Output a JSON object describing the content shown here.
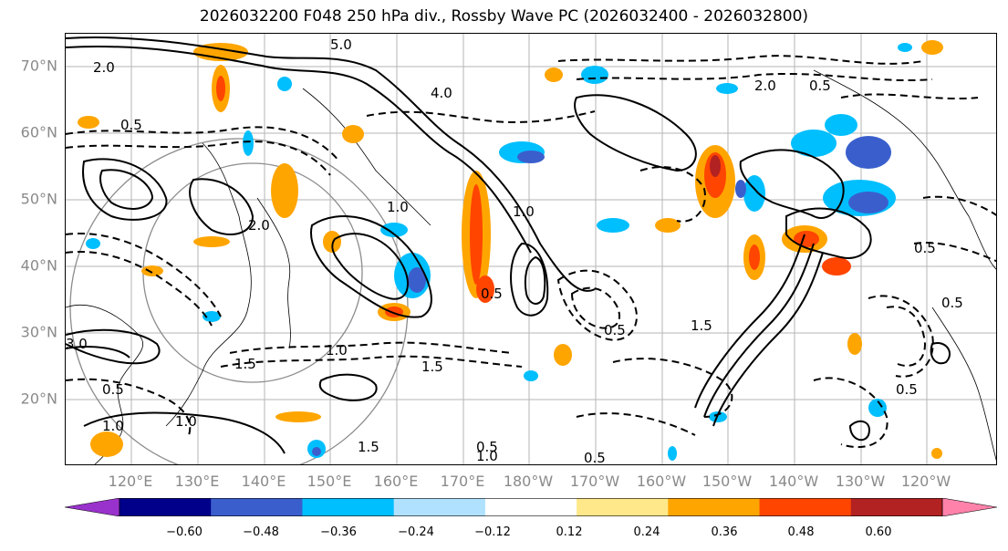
{
  "title": "2026032200 F048 250 hPa div., Rossby Wave PC (2026032400 - 2026032800)",
  "lat_labels": [
    "70°N",
    "60°N",
    "50°N",
    "40°N",
    "30°N",
    "20°N"
  ],
  "lon_labels": [
    "120°E",
    "130°E",
    "140°E",
    "150°E",
    "160°E",
    "170°E",
    "180°W",
    "170°W",
    "160°W",
    "150°W",
    "140°W",
    "130°W",
    "120°W"
  ],
  "colorbar": {
    "ticks": [
      "−0.60",
      "−0.48",
      "−0.36",
      "−0.24",
      "−0.12",
      "0.12",
      "0.24",
      "0.36",
      "0.48",
      "0.60"
    ],
    "colors": [
      "#9932cc",
      "#00008b",
      "#3a5fcd",
      "#00bfff",
      "#b0e2ff",
      "#ffffff",
      "#ffe88a",
      "#ffa500",
      "#ff4500",
      "#b22222",
      "#ff82ab"
    ]
  },
  "contour_labels": [
    "2.0",
    "0.5",
    "5.0",
    "4.0",
    "2.0",
    "0.5",
    "1.0",
    "1.0",
    "0.5",
    "1.5",
    "1.5",
    "0.5",
    "1.0",
    "1.0",
    "0.5",
    "0.5",
    "1.5",
    "3.0",
    "0.5",
    "1.5",
    "2.0",
    "1.0",
    "0.5",
    "1.0",
    "0.5",
    "0.5"
  ]
}
